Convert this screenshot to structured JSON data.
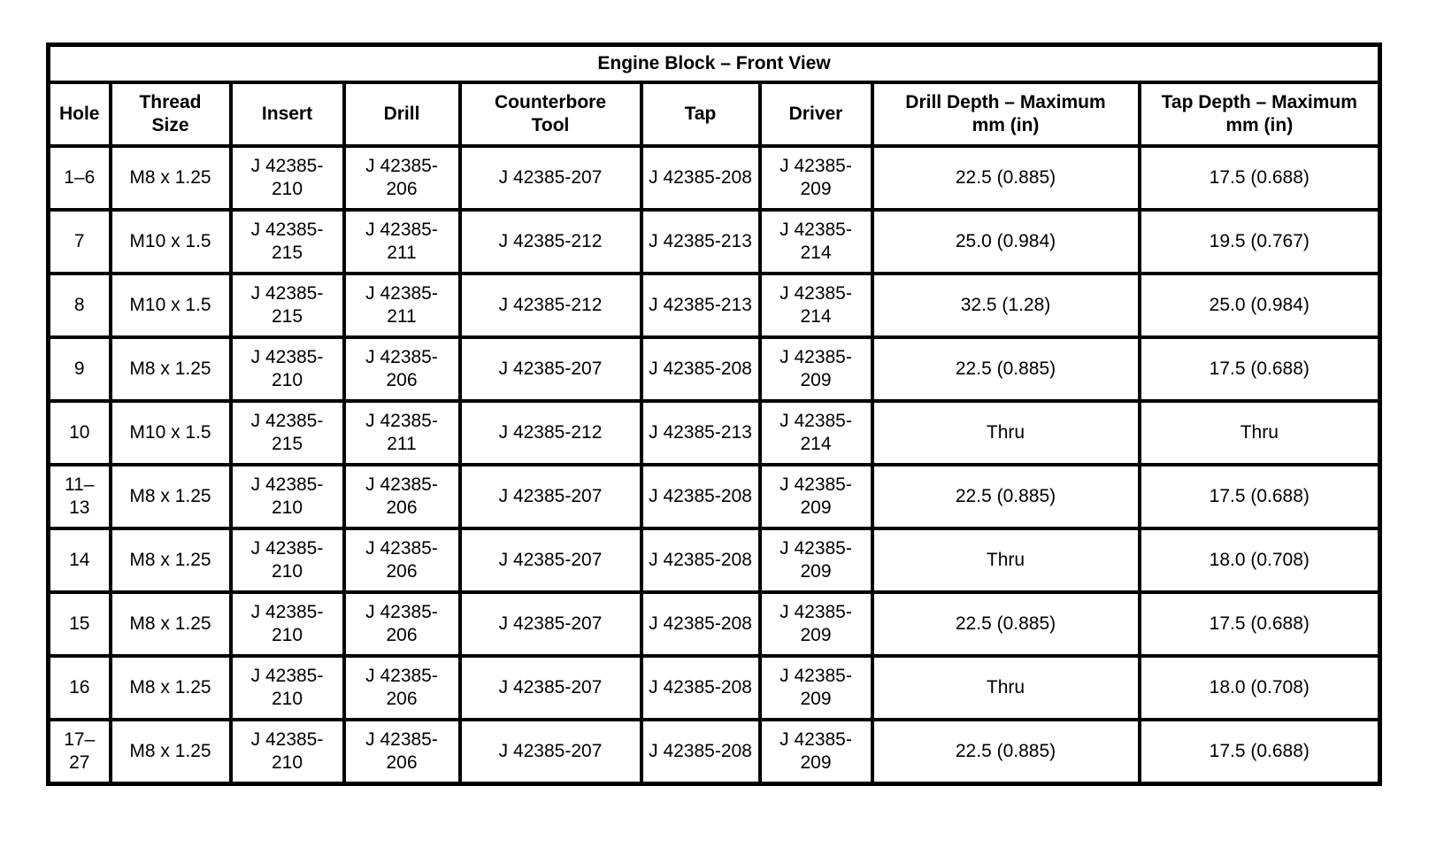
{
  "table": {
    "title": "Engine Block – Front View",
    "columns": [
      {
        "key": "hole",
        "label": "Hole"
      },
      {
        "key": "thread_size",
        "label": "Thread\nSize"
      },
      {
        "key": "insert",
        "label": "Insert"
      },
      {
        "key": "drill",
        "label": "Drill"
      },
      {
        "key": "counterbore_tool",
        "label": "Counterbore\nTool"
      },
      {
        "key": "tap",
        "label": "Tap"
      },
      {
        "key": "driver",
        "label": "Driver"
      },
      {
        "key": "drill_depth",
        "label": "Drill Depth – Maximum\nmm (in)"
      },
      {
        "key": "tap_depth",
        "label": "Tap Depth – Maximum\nmm (in)"
      }
    ],
    "rows": [
      [
        "1–6",
        "M8 x 1.25",
        "J 42385-210",
        "J 42385-206",
        "J 42385-207",
        "J 42385-208",
        "J 42385-209",
        "22.5 (0.885)",
        "17.5 (0.688)"
      ],
      [
        "7",
        "M10 x 1.5",
        "J 42385-215",
        "J 42385-211",
        "J 42385-212",
        "J 42385-213",
        "J 42385-214",
        "25.0 (0.984)",
        "19.5 (0.767)"
      ],
      [
        "8",
        "M10 x 1.5",
        "J 42385-215",
        "J 42385-211",
        "J 42385-212",
        "J 42385-213",
        "J 42385-214",
        "32.5 (1.28)",
        "25.0 (0.984)"
      ],
      [
        "9",
        "M8 x 1.25",
        "J 42385-210",
        "J 42385-206",
        "J 42385-207",
        "J 42385-208",
        "J 42385-209",
        "22.5 (0.885)",
        "17.5 (0.688)"
      ],
      [
        "10",
        "M10 x 1.5",
        "J 42385-215",
        "J 42385-211",
        "J 42385-212",
        "J 42385-213",
        "J 42385-214",
        "Thru",
        "Thru"
      ],
      [
        "11–13",
        "M8 x 1.25",
        "J 42385-210",
        "J 42385-206",
        "J 42385-207",
        "J 42385-208",
        "J 42385-209",
        "22.5 (0.885)",
        "17.5 (0.688)"
      ],
      [
        "14",
        "M8 x 1.25",
        "J 42385-210",
        "J 42385-206",
        "J 42385-207",
        "J 42385-208",
        "J 42385-209",
        "Thru",
        "18.0 (0.708)"
      ],
      [
        "15",
        "M8 x 1.25",
        "J 42385-210",
        "J 42385-206",
        "J 42385-207",
        "J 42385-208",
        "J 42385-209",
        "22.5 (0.885)",
        "17.5 (0.688)"
      ],
      [
        "16",
        "M8 x 1.25",
        "J 42385-210",
        "J 42385-206",
        "J 42385-207",
        "J 42385-208",
        "J 42385-209",
        "Thru",
        "18.0 (0.708)"
      ],
      [
        "17–27",
        "M8 x 1.25",
        "J 42385-210",
        "J 42385-206",
        "J 42385-207",
        "J 42385-208",
        "J 42385-209",
        "22.5 (0.885)",
        "17.5 (0.688)"
      ]
    ],
    "colors": {
      "border": "#000000",
      "background": "#ffffff",
      "text": "#000000"
    }
  }
}
